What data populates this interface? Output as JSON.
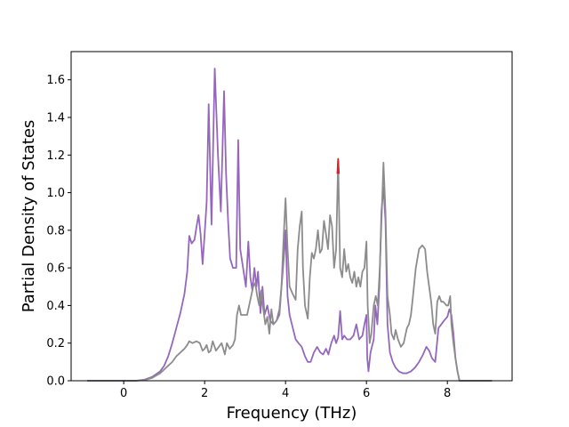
{
  "chart_data": {
    "type": "line",
    "title": "",
    "xlabel": "Frequency (THz)",
    "ylabel": "Partial Density of States",
    "xlim": [
      -1.3,
      9.6
    ],
    "ylim": [
      0.0,
      1.75
    ],
    "xticks": [
      0,
      2,
      4,
      6,
      8
    ],
    "yticks": [
      0.0,
      0.2,
      0.4,
      0.6,
      0.8,
      1.0,
      1.2,
      1.4,
      1.6
    ],
    "xtick_labels": [
      "0",
      "2",
      "4",
      "6",
      "8"
    ],
    "ytick_labels": [
      "0.0",
      "0.2",
      "0.4",
      "0.6",
      "0.8",
      "1.0",
      "1.2",
      "1.4",
      "1.6"
    ],
    "grid": false,
    "legend": "none",
    "series": [
      {
        "color": "#9467bd",
        "points": [
          [
            -0.9,
            0.0
          ],
          [
            0.3,
            0.0
          ],
          [
            0.5,
            0.005
          ],
          [
            0.7,
            0.02
          ],
          [
            0.9,
            0.05
          ],
          [
            1.0,
            0.08
          ],
          [
            1.1,
            0.13
          ],
          [
            1.2,
            0.2
          ],
          [
            1.3,
            0.28
          ],
          [
            1.4,
            0.36
          ],
          [
            1.5,
            0.46
          ],
          [
            1.57,
            0.58
          ],
          [
            1.62,
            0.77
          ],
          [
            1.68,
            0.73
          ],
          [
            1.75,
            0.75
          ],
          [
            1.8,
            0.82
          ],
          [
            1.85,
            0.88
          ],
          [
            1.9,
            0.78
          ],
          [
            1.95,
            0.62
          ],
          [
            2.0,
            0.78
          ],
          [
            2.05,
            0.95
          ],
          [
            2.1,
            1.47
          ],
          [
            2.17,
            0.83
          ],
          [
            2.25,
            1.66
          ],
          [
            2.33,
            1.2
          ],
          [
            2.4,
            0.9
          ],
          [
            2.48,
            1.54
          ],
          [
            2.53,
            1.1
          ],
          [
            2.58,
            0.85
          ],
          [
            2.63,
            0.65
          ],
          [
            2.7,
            0.6
          ],
          [
            2.78,
            0.6
          ],
          [
            2.83,
            1.28
          ],
          [
            2.88,
            0.7
          ],
          [
            2.95,
            0.6
          ],
          [
            3.02,
            0.5
          ],
          [
            3.08,
            0.74
          ],
          [
            3.13,
            0.55
          ],
          [
            3.18,
            0.48
          ],
          [
            3.23,
            0.6
          ],
          [
            3.28,
            0.5
          ],
          [
            3.32,
            0.58
          ],
          [
            3.38,
            0.36
          ],
          [
            3.43,
            0.5
          ],
          [
            3.48,
            0.35
          ],
          [
            3.55,
            0.4
          ],
          [
            3.62,
            0.32
          ],
          [
            3.7,
            0.3
          ],
          [
            3.78,
            0.32
          ],
          [
            3.85,
            0.38
          ],
          [
            3.92,
            0.55
          ],
          [
            3.98,
            0.72
          ],
          [
            4.0,
            0.8
          ],
          [
            4.05,
            0.45
          ],
          [
            4.1,
            0.35
          ],
          [
            4.18,
            0.28
          ],
          [
            4.25,
            0.22
          ],
          [
            4.32,
            0.2
          ],
          [
            4.4,
            0.18
          ],
          [
            4.48,
            0.13
          ],
          [
            4.55,
            0.1
          ],
          [
            4.62,
            0.1
          ],
          [
            4.7,
            0.15
          ],
          [
            4.78,
            0.18
          ],
          [
            4.86,
            0.15
          ],
          [
            4.93,
            0.14
          ],
          [
            5.0,
            0.17
          ],
          [
            5.06,
            0.14
          ],
          [
            5.13,
            0.2
          ],
          [
            5.2,
            0.24
          ],
          [
            5.25,
            0.2
          ],
          [
            5.3,
            0.23
          ],
          [
            5.35,
            0.37
          ],
          [
            5.4,
            0.22
          ],
          [
            5.45,
            0.24
          ],
          [
            5.52,
            0.22
          ],
          [
            5.6,
            0.22
          ],
          [
            5.68,
            0.24
          ],
          [
            5.75,
            0.3
          ],
          [
            5.82,
            0.22
          ],
          [
            5.9,
            0.24
          ],
          [
            5.95,
            0.3
          ],
          [
            6.0,
            0.35
          ],
          [
            6.02,
            0.12
          ],
          [
            6.05,
            0.05
          ],
          [
            6.1,
            0.15
          ],
          [
            6.18,
            0.22
          ],
          [
            6.22,
            0.4
          ],
          [
            6.27,
            0.3
          ],
          [
            6.32,
            0.5
          ],
          [
            6.37,
            0.9
          ],
          [
            6.42,
            1.03
          ],
          [
            6.47,
            0.85
          ],
          [
            6.52,
            0.3
          ],
          [
            6.58,
            0.15
          ],
          [
            6.65,
            0.1
          ],
          [
            6.72,
            0.07
          ],
          [
            6.8,
            0.05
          ],
          [
            6.9,
            0.04
          ],
          [
            7.0,
            0.04
          ],
          [
            7.1,
            0.05
          ],
          [
            7.2,
            0.07
          ],
          [
            7.3,
            0.1
          ],
          [
            7.4,
            0.14
          ],
          [
            7.48,
            0.18
          ],
          [
            7.55,
            0.16
          ],
          [
            7.62,
            0.12
          ],
          [
            7.7,
            0.1
          ],
          [
            7.78,
            0.28
          ],
          [
            7.85,
            0.3
          ],
          [
            7.92,
            0.32
          ],
          [
            8.0,
            0.34
          ],
          [
            8.05,
            0.38
          ],
          [
            8.1,
            0.35
          ],
          [
            8.15,
            0.25
          ],
          [
            8.2,
            0.12
          ],
          [
            8.25,
            0.05
          ],
          [
            8.3,
            0.0
          ],
          [
            9.1,
            0.0
          ]
        ]
      },
      {
        "color": "#8c8c8c",
        "points": [
          [
            -0.9,
            0.0
          ],
          [
            0.3,
            0.0
          ],
          [
            0.5,
            0.003
          ],
          [
            0.7,
            0.015
          ],
          [
            0.9,
            0.04
          ],
          [
            1.0,
            0.06
          ],
          [
            1.1,
            0.08
          ],
          [
            1.2,
            0.1
          ],
          [
            1.3,
            0.13
          ],
          [
            1.4,
            0.15
          ],
          [
            1.5,
            0.17
          ],
          [
            1.57,
            0.19
          ],
          [
            1.62,
            0.21
          ],
          [
            1.7,
            0.2
          ],
          [
            1.8,
            0.21
          ],
          [
            1.88,
            0.2
          ],
          [
            1.95,
            0.16
          ],
          [
            2.0,
            0.17
          ],
          [
            2.05,
            0.19
          ],
          [
            2.1,
            0.15
          ],
          [
            2.15,
            0.16
          ],
          [
            2.2,
            0.21
          ],
          [
            2.28,
            0.16
          ],
          [
            2.35,
            0.18
          ],
          [
            2.42,
            0.2
          ],
          [
            2.5,
            0.14
          ],
          [
            2.55,
            0.2
          ],
          [
            2.62,
            0.17
          ],
          [
            2.7,
            0.19
          ],
          [
            2.75,
            0.22
          ],
          [
            2.8,
            0.35
          ],
          [
            2.85,
            0.4
          ],
          [
            2.9,
            0.35
          ],
          [
            2.96,
            0.35
          ],
          [
            3.05,
            0.35
          ],
          [
            3.1,
            0.4
          ],
          [
            3.15,
            0.45
          ],
          [
            3.2,
            0.5
          ],
          [
            3.25,
            0.52
          ],
          [
            3.3,
            0.45
          ],
          [
            3.35,
            0.4
          ],
          [
            3.4,
            0.48
          ],
          [
            3.45,
            0.38
          ],
          [
            3.5,
            0.3
          ],
          [
            3.55,
            0.34
          ],
          [
            3.6,
            0.25
          ],
          [
            3.65,
            0.38
          ],
          [
            3.7,
            0.3
          ],
          [
            3.78,
            0.32
          ],
          [
            3.85,
            0.35
          ],
          [
            3.9,
            0.5
          ],
          [
            3.95,
            0.75
          ],
          [
            4.0,
            0.97
          ],
          [
            4.05,
            0.7
          ],
          [
            4.1,
            0.5
          ],
          [
            4.18,
            0.46
          ],
          [
            4.25,
            0.43
          ],
          [
            4.3,
            0.7
          ],
          [
            4.35,
            0.82
          ],
          [
            4.4,
            0.9
          ],
          [
            4.43,
            0.6
          ],
          [
            4.48,
            0.4
          ],
          [
            4.55,
            0.33
          ],
          [
            4.6,
            0.55
          ],
          [
            4.65,
            0.68
          ],
          [
            4.7,
            0.65
          ],
          [
            4.75,
            0.7
          ],
          [
            4.8,
            0.8
          ],
          [
            4.85,
            0.68
          ],
          [
            4.9,
            0.7
          ],
          [
            4.95,
            0.85
          ],
          [
            5.0,
            0.78
          ],
          [
            5.05,
            0.7
          ],
          [
            5.1,
            0.88
          ],
          [
            5.15,
            0.82
          ],
          [
            5.2,
            0.6
          ],
          [
            5.25,
            0.7
          ],
          [
            5.3,
            1.17
          ],
          [
            5.35,
            0.6
          ],
          [
            5.4,
            0.55
          ],
          [
            5.45,
            0.7
          ],
          [
            5.5,
            0.58
          ],
          [
            5.55,
            0.62
          ],
          [
            5.6,
            0.55
          ],
          [
            5.65,
            0.52
          ],
          [
            5.7,
            0.58
          ],
          [
            5.75,
            0.5
          ],
          [
            5.8,
            0.55
          ],
          [
            5.85,
            0.5
          ],
          [
            5.9,
            0.58
          ],
          [
            5.95,
            0.6
          ],
          [
            6.0,
            0.74
          ],
          [
            6.03,
            0.4
          ],
          [
            6.08,
            0.2
          ],
          [
            6.12,
            0.25
          ],
          [
            6.18,
            0.4
          ],
          [
            6.23,
            0.45
          ],
          [
            6.28,
            0.4
          ],
          [
            6.33,
            0.6
          ],
          [
            6.38,
            0.9
          ],
          [
            6.42,
            1.16
          ],
          [
            6.47,
            0.9
          ],
          [
            6.52,
            0.45
          ],
          [
            6.58,
            0.35
          ],
          [
            6.62,
            0.25
          ],
          [
            6.68,
            0.22
          ],
          [
            6.72,
            0.27
          ],
          [
            6.78,
            0.22
          ],
          [
            6.85,
            0.18
          ],
          [
            6.92,
            0.2
          ],
          [
            7.0,
            0.28
          ],
          [
            7.05,
            0.3
          ],
          [
            7.1,
            0.35
          ],
          [
            7.15,
            0.45
          ],
          [
            7.22,
            0.6
          ],
          [
            7.3,
            0.7
          ],
          [
            7.38,
            0.72
          ],
          [
            7.45,
            0.7
          ],
          [
            7.5,
            0.58
          ],
          [
            7.55,
            0.5
          ],
          [
            7.6,
            0.42
          ],
          [
            7.65,
            0.3
          ],
          [
            7.7,
            0.25
          ],
          [
            7.75,
            0.42
          ],
          [
            7.8,
            0.45
          ],
          [
            7.85,
            0.42
          ],
          [
            7.9,
            0.42
          ],
          [
            7.98,
            0.4
          ],
          [
            8.02,
            0.4
          ],
          [
            8.07,
            0.45
          ],
          [
            8.1,
            0.3
          ],
          [
            8.15,
            0.2
          ],
          [
            8.2,
            0.12
          ],
          [
            8.25,
            0.05
          ],
          [
            8.3,
            0.0
          ],
          [
            9.1,
            0.0
          ]
        ]
      },
      {
        "color": "#d62728",
        "points": [
          [
            5.28,
            1.1
          ],
          [
            5.3,
            1.18
          ],
          [
            5.32,
            1.1
          ]
        ]
      }
    ]
  }
}
